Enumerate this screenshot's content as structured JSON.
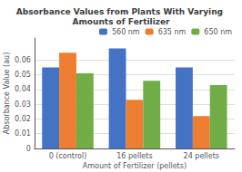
{
  "chart_data": {
    "type": "bar",
    "title": "Absorbance Values from Plants With Varying Amounts of Fertilizer",
    "xlabel": "Amount of Fertilizer (pellets)",
    "ylabel": "Absorbance Value (au)",
    "categories": [
      "0 (control)",
      "16 pellets",
      "24 pellets"
    ],
    "series": [
      {
        "name": "560 nm",
        "color": "#4472c4",
        "values": [
          0.055,
          0.068,
          0.055
        ]
      },
      {
        "name": "635 nm",
        "color": "#ed7d31",
        "values": [
          0.065,
          0.033,
          0.022
        ]
      },
      {
        "name": "650 nm",
        "color": "#70ad47",
        "values": [
          0.051,
          0.046,
          0.043
        ]
      }
    ],
    "ylim": [
      0,
      0.075
    ],
    "yticks": [
      0,
      0.01,
      0.02,
      0.03,
      0.04,
      0.05,
      0.06
    ],
    "grid": true,
    "legend": "upper right"
  }
}
